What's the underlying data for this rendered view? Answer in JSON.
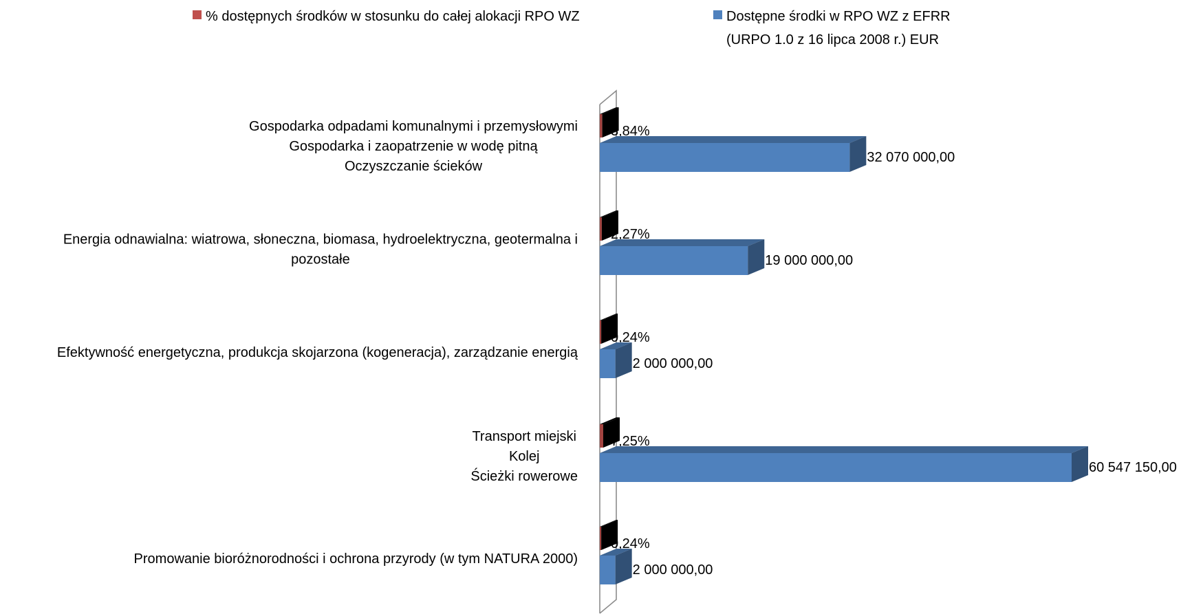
{
  "chart_data": {
    "type": "bar",
    "orientation": "horizontal",
    "style": "3d",
    "legend_position": "top",
    "grid": false,
    "categories": [
      [
        "Gospodarka odpadami komunalnymi i przemysłowymi",
        "Gospodarka i zaopatrzenie w wodę pitną",
        "Oczyszczanie ścieków"
      ],
      [
        "Energia odnawialna: wiatrowa, słoneczna, biomasa, hydroelektryczna, geotermalna i",
        "pozostałe"
      ],
      [
        "Efektywność energetyczna, produkcja skojarzona (kogeneracja), zarządzanie energią"
      ],
      [
        "Transport miejski",
        "Kolej",
        "Ścieżki rowerowe"
      ],
      [
        "Promowanie bioróżnorodności i ochrona przyrody (w tym NATURA 2000)"
      ]
    ],
    "series": [
      {
        "name": "% dostępnych środków w stosunku do całej alokacji RPO WZ",
        "color": "#C0504D",
        "values": [
          3.84,
          2.27,
          0.24,
          7.25,
          0.24
        ],
        "labels": [
          "3,84%",
          "2,27%",
          "0,24%",
          "7,25%",
          "0,24%"
        ]
      },
      {
        "name": "Dostępne środki w RPO WZ z EFRR (URPO 1.0 z 16 lipca 2008 r.) EUR",
        "legend_lines": [
          "Dostępne środki w RPO WZ z EFRR",
          "(URPO 1.0 z 16 lipca 2008 r.) EUR"
        ],
        "color": "#4F81BD",
        "values": [
          32070000,
          19000000,
          2000000,
          60547150,
          2000000
        ],
        "labels": [
          "32 070 000,00",
          "19 000 000,00",
          "2 000 000,00",
          "60 547 150,00",
          "2 000 000,00"
        ]
      }
    ]
  }
}
